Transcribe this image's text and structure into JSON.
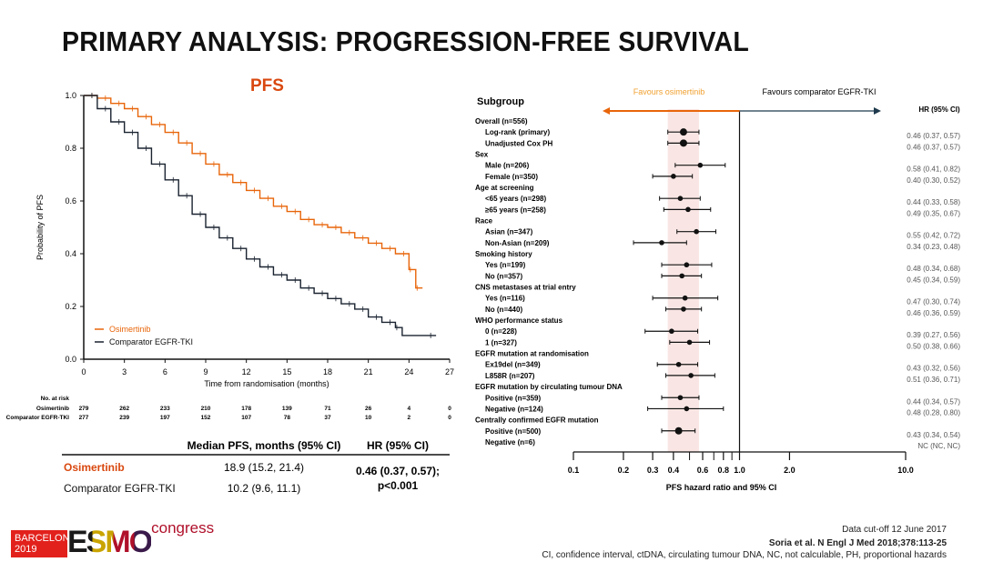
{
  "slide": {
    "title": "PRIMARY ANALYSIS: PROGRESSION-FREE SURVIVAL",
    "footer": {
      "cutoff": "Data cut-off  12 June 2017",
      "citation": "Soria et al. N Engl J Med 2018;378:113-25",
      "abbreviations": "CI, confidence interval, ctDNA, circulating tumour DNA, NC, not calculable, PH, proportional hazards"
    },
    "logo": {
      "city": "BARCELONA",
      "year": "2019",
      "brand": "ESMO",
      "suffix": "congress"
    }
  },
  "chart_data": [
    {
      "type": "line",
      "title": "PFS",
      "xlabel": "Time from randomisation (months)",
      "ylabel": "Probability of PFS",
      "xlim": [
        0,
        27
      ],
      "ylim": [
        0,
        1.0
      ],
      "xticks": [
        "0",
        "3",
        "6",
        "9",
        "12",
        "15",
        "18",
        "21",
        "24",
        "27"
      ],
      "yticks": [
        "0.0",
        "0.2",
        "0.4",
        "0.6",
        "0.8",
        "1.0"
      ],
      "grid": false,
      "legend_placement": "bottom-left",
      "colors": {
        "Osimertinib": "#e8650a",
        "Comparator EGFR-TKI": "#1a2330"
      },
      "series": [
        {
          "name": "Osimertinib",
          "step": true,
          "x": [
            0,
            1,
            2,
            3,
            4,
            5,
            6,
            7,
            8,
            9,
            10,
            11,
            12,
            13,
            14,
            15,
            16,
            17,
            18,
            19,
            20,
            21,
            22,
            23,
            24,
            24.5,
            25
          ],
          "y": [
            1.0,
            0.99,
            0.97,
            0.95,
            0.92,
            0.89,
            0.86,
            0.82,
            0.78,
            0.74,
            0.7,
            0.67,
            0.64,
            0.61,
            0.58,
            0.56,
            0.53,
            0.51,
            0.5,
            0.48,
            0.46,
            0.44,
            0.42,
            0.4,
            0.34,
            0.27,
            0.27
          ]
        },
        {
          "name": "Comparator EGFR-TKI",
          "step": true,
          "x": [
            0,
            1,
            2,
            3,
            4,
            5,
            6,
            7,
            8,
            9,
            10,
            11,
            12,
            13,
            14,
            15,
            16,
            17,
            18,
            19,
            20,
            21,
            22,
            23,
            23.5,
            26
          ],
          "y": [
            1.0,
            0.95,
            0.9,
            0.86,
            0.8,
            0.74,
            0.68,
            0.62,
            0.55,
            0.5,
            0.46,
            0.42,
            0.38,
            0.35,
            0.32,
            0.3,
            0.27,
            0.25,
            0.23,
            0.21,
            0.19,
            0.16,
            0.14,
            0.12,
            0.09,
            0.09
          ]
        }
      ],
      "at_risk": {
        "header": "No. at risk",
        "rows": [
          {
            "name": "Osimertinib",
            "values": [
              "279",
              "262",
              "233",
              "210",
              "178",
              "139",
              "71",
              "26",
              "4",
              "0"
            ]
          },
          {
            "name": "Comparator EGFR-TKI",
            "values": [
              "277",
              "239",
              "197",
              "152",
              "107",
              "78",
              "37",
              "10",
              "2",
              "0"
            ]
          }
        ]
      },
      "summary_table": {
        "headers": [
          "",
          "Median PFS, months (95% CI)",
          "HR (95% CI)"
        ],
        "rows": [
          {
            "arm": "Osimertinib",
            "median": "18.9 (15.2, 21.4)"
          },
          {
            "arm": "Comparator EGFR-TKI",
            "median": "10.2 (9.6, 11.1)"
          }
        ],
        "hr": "0.46 (0.37, 0.57);",
        "p": "p<0.001"
      }
    },
    {
      "type": "forest",
      "xlabel": "PFS hazard ratio and 95% CI",
      "x_scale": "log",
      "xlim": [
        0.1,
        10.0
      ],
      "xticks": [
        "0.1",
        "0.2",
        "0.3",
        "0.4",
        "0.6",
        "0.8",
        "1.0",
        "2.0",
        "10.0"
      ],
      "minor_ticks": [
        0.5,
        0.7,
        0.9
      ],
      "column_header": "Subgroup",
      "hr_header": "HR (95% CI)",
      "favours_left": "Favours osimertinib",
      "favours_right": "Favours comparator EGFR-TKI",
      "colors": {
        "left_arrow": "#e8650a",
        "right_arrow": "#1f3a4d",
        "ci_band": "#f7dcd8"
      },
      "overall_ci_band": [
        0.37,
        0.57
      ],
      "rows": [
        {
          "label": "Overall (n=556)",
          "indent": 0
        },
        {
          "label": "Log-rank (primary)",
          "indent": 1,
          "hr": 0.46,
          "lo": 0.37,
          "hi": 0.57,
          "text": "0.46 (0.37, 0.57)"
        },
        {
          "label": "Unadjusted Cox PH",
          "indent": 1,
          "hr": 0.46,
          "lo": 0.37,
          "hi": 0.57,
          "text": "0.46 (0.37, 0.57)"
        },
        {
          "label": "Sex",
          "indent": 0
        },
        {
          "label": "Male (n=206)",
          "indent": 1,
          "hr": 0.58,
          "lo": 0.41,
          "hi": 0.82,
          "text": "0.58 (0.41, 0.82)"
        },
        {
          "label": "Female (n=350)",
          "indent": 1,
          "hr": 0.4,
          "lo": 0.3,
          "hi": 0.52,
          "text": "0.40 (0.30, 0.52)"
        },
        {
          "label": "Age at screening",
          "indent": 0
        },
        {
          "label": "<65 years (n=298)",
          "indent": 1,
          "hr": 0.44,
          "lo": 0.33,
          "hi": 0.58,
          "text": "0.44 (0.33, 0.58)"
        },
        {
          "label": "≥65 years (n=258)",
          "indent": 1,
          "hr": 0.49,
          "lo": 0.35,
          "hi": 0.67,
          "text": "0.49 (0.35, 0.67)"
        },
        {
          "label": "Race",
          "indent": 0
        },
        {
          "label": "Asian (n=347)",
          "indent": 1,
          "hr": 0.55,
          "lo": 0.42,
          "hi": 0.72,
          "text": "0.55 (0.42, 0.72)"
        },
        {
          "label": "Non-Asian (n=209)",
          "indent": 1,
          "hr": 0.34,
          "lo": 0.23,
          "hi": 0.48,
          "text": "0.34 (0.23, 0.48)"
        },
        {
          "label": "Smoking history",
          "indent": 0
        },
        {
          "label": "Yes (n=199)",
          "indent": 1,
          "hr": 0.48,
          "lo": 0.34,
          "hi": 0.68,
          "text": "0.48 (0.34, 0.68)"
        },
        {
          "label": "No (n=357)",
          "indent": 1,
          "hr": 0.45,
          "lo": 0.34,
          "hi": 0.59,
          "text": "0.45 (0.34, 0.59)"
        },
        {
          "label": "CNS metastases at trial entry",
          "indent": 0
        },
        {
          "label": "Yes (n=116)",
          "indent": 1,
          "hr": 0.47,
          "lo": 0.3,
          "hi": 0.74,
          "text": "0.47 (0.30, 0.74)"
        },
        {
          "label": "No (n=440)",
          "indent": 1,
          "hr": 0.46,
          "lo": 0.36,
          "hi": 0.59,
          "text": "0.46 (0.36, 0.59)"
        },
        {
          "label": "WHO performance status",
          "indent": 0
        },
        {
          "label": "0 (n=228)",
          "indent": 1,
          "hr": 0.39,
          "lo": 0.27,
          "hi": 0.56,
          "text": "0.39 (0.27, 0.56)"
        },
        {
          "label": "1 (n=327)",
          "indent": 1,
          "hr": 0.5,
          "lo": 0.38,
          "hi": 0.66,
          "text": "0.50 (0.38, 0.66)"
        },
        {
          "label": "EGFR mutation at randomisation",
          "indent": 0
        },
        {
          "label": "Ex19del (n=349)",
          "indent": 1,
          "hr": 0.43,
          "lo": 0.32,
          "hi": 0.56,
          "text": "0.43 (0.32, 0.56)"
        },
        {
          "label": "L858R (n=207)",
          "indent": 1,
          "hr": 0.51,
          "lo": 0.36,
          "hi": 0.71,
          "text": "0.51 (0.36, 0.71)"
        },
        {
          "label": "EGFR mutation by circulating tumour DNA",
          "indent": 0
        },
        {
          "label": "Positive (n=359)",
          "indent": 1,
          "hr": 0.44,
          "lo": 0.34,
          "hi": 0.57,
          "text": "0.44 (0.34, 0.57)"
        },
        {
          "label": "Negative (n=124)",
          "indent": 1,
          "hr": 0.48,
          "lo": 0.28,
          "hi": 0.8,
          "text": "0.48 (0.28, 0.80)"
        },
        {
          "label": "Centrally confirmed EGFR mutation",
          "indent": 0
        },
        {
          "label": "Positive (n=500)",
          "indent": 1,
          "hr": 0.43,
          "lo": 0.34,
          "hi": 0.54,
          "text": "0.43 (0.34, 0.54)"
        },
        {
          "label": "Negative (n=6)",
          "indent": 1,
          "text": "NC (NC, NC)"
        }
      ]
    }
  ]
}
